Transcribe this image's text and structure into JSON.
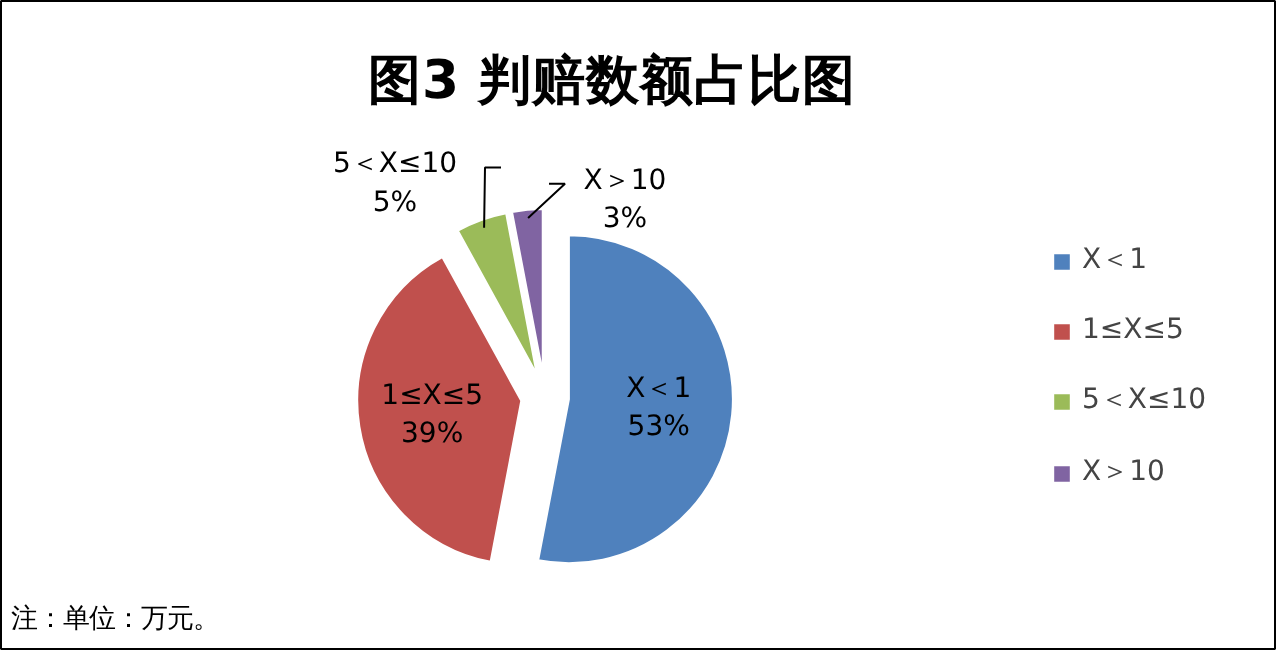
{
  "chart_data": {
    "type": "pie",
    "title": "图3  判赔数额占比图",
    "categories": [
      "X＜1",
      "1≤X≤5",
      "5＜X≤10",
      "X＞10"
    ],
    "values": [
      53,
      39,
      5,
      3
    ],
    "colors": [
      "#4f81bd",
      "#c0504d",
      "#9bbb59",
      "#8064a2"
    ],
    "value_labels": [
      "53%",
      "39%",
      "5%",
      "3%"
    ],
    "legend": "right",
    "annotations": [
      "注：单位：万元。"
    ]
  }
}
